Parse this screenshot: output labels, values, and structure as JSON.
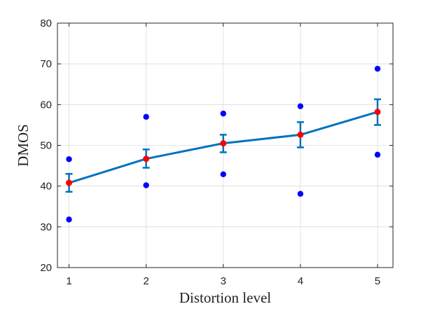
{
  "chart_data": {
    "type": "line",
    "title": "",
    "xlabel": "Distortion level",
    "ylabel": "DMOS",
    "xlim": [
      0.85,
      5.2
    ],
    "ylim": [
      20,
      80
    ],
    "x_ticks": [
      1,
      2,
      3,
      4,
      5
    ],
    "y_ticks": [
      20,
      30,
      40,
      50,
      60,
      70,
      80
    ],
    "grid": true,
    "colors": {
      "line": "#0072BD",
      "mean_marker": "#FF0000",
      "scatter": "#0000FF",
      "grid": "#dcdcdc",
      "axes": "#262626"
    },
    "series": [
      {
        "kind": "mean_with_error",
        "x": [
          1,
          2,
          3,
          4,
          5
        ],
        "y": [
          40.8,
          46.7,
          50.5,
          52.6,
          58.2
        ],
        "err_low": [
          2.2,
          2.2,
          2.2,
          3.1,
          3.2
        ],
        "err_high": [
          2.2,
          2.3,
          2.1,
          3.1,
          3.1
        ]
      },
      {
        "kind": "scatter",
        "x": [
          1,
          1,
          2,
          2,
          3,
          3,
          4,
          4,
          5,
          5
        ],
        "y": [
          46.6,
          31.8,
          57.0,
          40.2,
          57.8,
          42.9,
          59.6,
          38.1,
          68.8,
          47.7
        ]
      }
    ]
  }
}
